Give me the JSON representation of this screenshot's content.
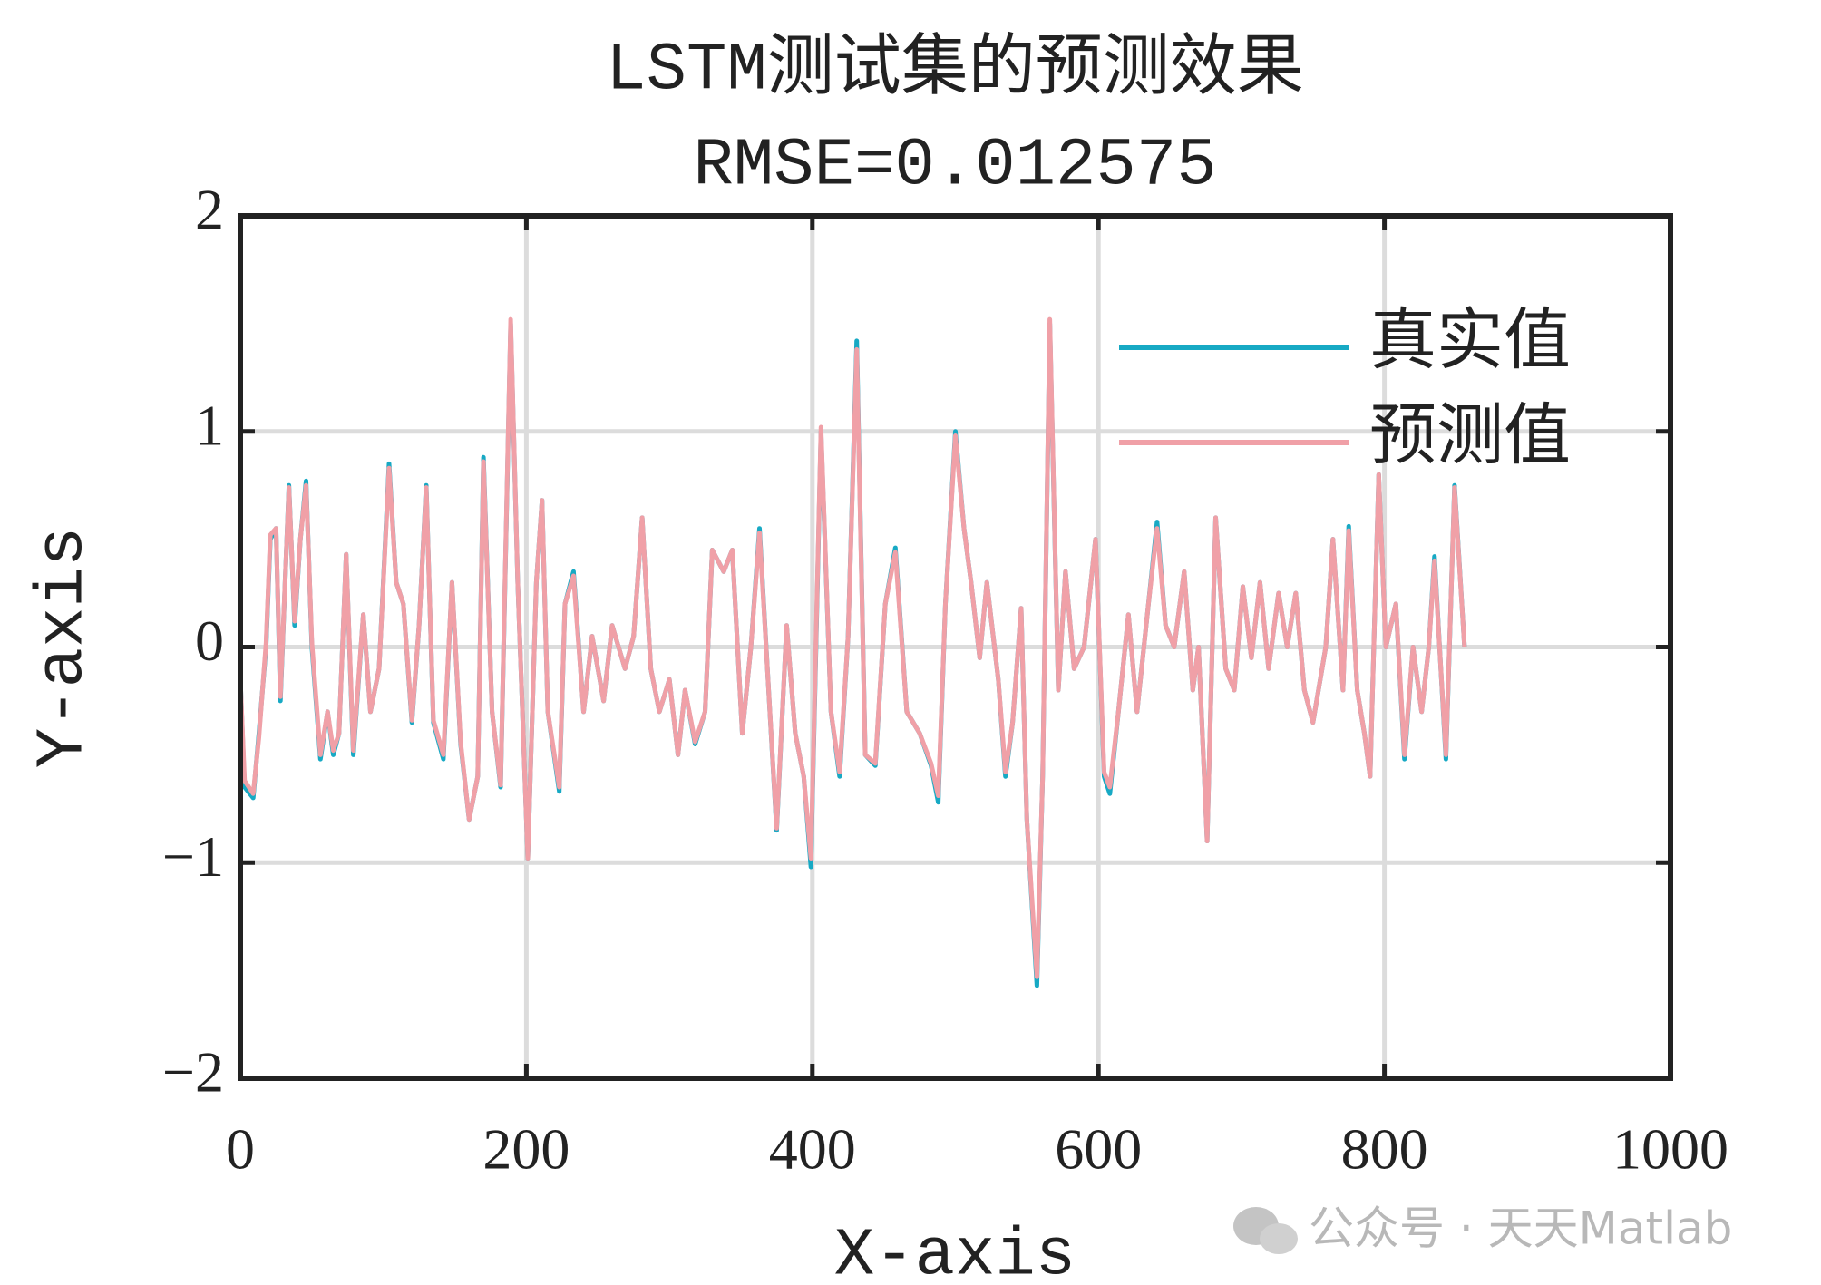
{
  "chart_data": {
    "type": "line",
    "title": "LSTM测试集的预测效果",
    "subtitle": "RMSE=0.012575",
    "x_label": "X-axis",
    "y_label": "Y-axis",
    "watermark": "公众号 · 天天Matlab",
    "x": [
      0,
      3,
      9,
      13,
      18,
      21,
      25,
      28,
      34,
      38,
      42,
      46,
      50,
      56,
      61,
      65,
      69,
      74,
      79,
      86,
      91,
      97,
      104,
      109,
      114,
      120,
      125,
      130,
      135,
      142,
      148,
      154,
      160,
      166,
      170,
      176,
      182,
      189,
      194,
      201,
      207,
      211,
      215,
      223,
      227,
      233,
      240,
      246,
      254,
      260,
      269,
      275,
      281,
      287,
      293,
      300,
      306,
      311,
      318,
      325,
      330,
      338,
      344,
      351,
      357,
      363,
      369,
      375,
      382,
      388,
      394,
      399,
      406,
      413,
      419,
      425,
      431,
      437,
      444,
      451,
      458,
      466,
      475,
      483,
      488,
      493,
      500,
      506,
      511,
      517,
      522,
      530,
      535,
      540,
      546,
      550,
      557,
      561,
      566,
      572,
      577,
      583,
      590,
      598,
      604,
      608,
      614,
      621,
      627,
      635,
      641,
      647,
      653,
      660,
      666,
      670,
      676,
      682,
      689,
      695,
      701,
      707,
      713,
      719,
      726,
      732,
      738,
      744,
      750,
      759,
      764,
      771,
      775,
      781,
      786,
      790,
      796,
      801,
      808,
      814,
      820,
      826,
      831,
      835,
      843,
      849,
      856
    ],
    "series": [
      {
        "name": "真实值",
        "color": "#17a9c4",
        "values": [
          -0.15,
          -0.65,
          -0.7,
          -0.4,
          0.0,
          0.5,
          0.55,
          -0.25,
          0.75,
          0.1,
          0.5,
          0.77,
          0.0,
          -0.52,
          -0.3,
          -0.5,
          -0.4,
          0.43,
          -0.5,
          0.15,
          -0.3,
          -0.1,
          0.85,
          0.3,
          0.2,
          -0.35,
          0.1,
          0.75,
          -0.35,
          -0.52,
          0.3,
          -0.45,
          -0.8,
          -0.6,
          0.88,
          -0.3,
          -0.65,
          1.5,
          0.3,
          -0.98,
          0.3,
          0.68,
          -0.3,
          -0.67,
          0.2,
          0.35,
          -0.3,
          0.05,
          -0.25,
          0.1,
          -0.1,
          0.05,
          0.6,
          -0.1,
          -0.3,
          -0.15,
          -0.5,
          -0.2,
          -0.45,
          -0.3,
          0.45,
          0.35,
          0.45,
          -0.4,
          0.0,
          0.55,
          -0.15,
          -0.85,
          0.1,
          -0.4,
          -0.6,
          -1.02,
          1.0,
          -0.3,
          -0.6,
          0.05,
          1.42,
          -0.5,
          -0.55,
          0.2,
          0.46,
          -0.3,
          -0.4,
          -0.55,
          -0.72,
          0.2,
          1.0,
          0.55,
          0.3,
          -0.05,
          0.3,
          -0.15,
          -0.6,
          -0.35,
          0.18,
          -0.8,
          -1.57,
          -0.6,
          1.5,
          -0.2,
          0.35,
          -0.1,
          0.0,
          0.5,
          -0.6,
          -0.68,
          -0.3,
          0.15,
          -0.3,
          0.2,
          0.58,
          0.1,
          0.0,
          0.35,
          -0.2,
          0.0,
          -0.9,
          0.6,
          -0.1,
          -0.2,
          0.28,
          -0.05,
          0.3,
          -0.1,
          0.25,
          0.0,
          0.25,
          -0.2,
          -0.35,
          0.0,
          0.5,
          -0.2,
          0.56,
          -0.2,
          -0.4,
          -0.6,
          0.8,
          0.0,
          0.2,
          -0.52,
          0.0,
          -0.3,
          0.0,
          0.42,
          -0.52,
          0.75,
          0.0
        ]
      },
      {
        "name": "预测值",
        "color": "#f0a0a7",
        "values": [
          -0.15,
          -0.62,
          -0.68,
          -0.42,
          0.02,
          0.52,
          0.55,
          -0.23,
          0.74,
          0.12,
          0.5,
          0.75,
          0.02,
          -0.5,
          -0.3,
          -0.48,
          -0.4,
          0.43,
          -0.48,
          0.15,
          -0.3,
          -0.1,
          0.83,
          0.3,
          0.2,
          -0.34,
          0.1,
          0.74,
          -0.34,
          -0.5,
          0.3,
          -0.44,
          -0.8,
          -0.6,
          0.86,
          -0.3,
          -0.64,
          1.52,
          0.3,
          -0.98,
          0.3,
          0.68,
          -0.3,
          -0.65,
          0.2,
          0.33,
          -0.3,
          0.05,
          -0.25,
          0.1,
          -0.1,
          0.05,
          0.6,
          -0.1,
          -0.3,
          -0.15,
          -0.5,
          -0.2,
          -0.44,
          -0.3,
          0.45,
          0.35,
          0.45,
          -0.4,
          0.0,
          0.53,
          -0.15,
          -0.84,
          0.1,
          -0.4,
          -0.6,
          -0.98,
          1.02,
          -0.3,
          -0.58,
          0.05,
          1.38,
          -0.5,
          -0.54,
          0.2,
          0.44,
          -0.3,
          -0.4,
          -0.54,
          -0.69,
          0.2,
          0.98,
          0.55,
          0.3,
          -0.05,
          0.3,
          -0.15,
          -0.58,
          -0.35,
          0.18,
          -0.8,
          -1.53,
          -0.6,
          1.52,
          -0.2,
          0.35,
          -0.1,
          0.0,
          0.5,
          -0.58,
          -0.65,
          -0.3,
          0.15,
          -0.3,
          0.2,
          0.55,
          0.1,
          0.0,
          0.35,
          -0.2,
          0.0,
          -0.9,
          0.6,
          -0.1,
          -0.2,
          0.28,
          -0.05,
          0.3,
          -0.1,
          0.25,
          0.0,
          0.25,
          -0.2,
          -0.35,
          0.0,
          0.5,
          -0.2,
          0.54,
          -0.2,
          -0.4,
          -0.6,
          0.8,
          0.0,
          0.2,
          -0.5,
          0.0,
          -0.3,
          0.0,
          0.4,
          -0.5,
          0.74,
          0.0
        ]
      }
    ],
    "xlim": [
      0,
      1000
    ],
    "ylim": [
      -2,
      2
    ],
    "xticks": [
      0,
      200,
      400,
      600,
      800,
      1000
    ],
    "yticks": [
      {
        "value": -2,
        "label": "−2"
      },
      {
        "value": -1,
        "label": "−1"
      },
      0,
      1,
      2
    ],
    "grid": true,
    "legend": "upper right"
  }
}
